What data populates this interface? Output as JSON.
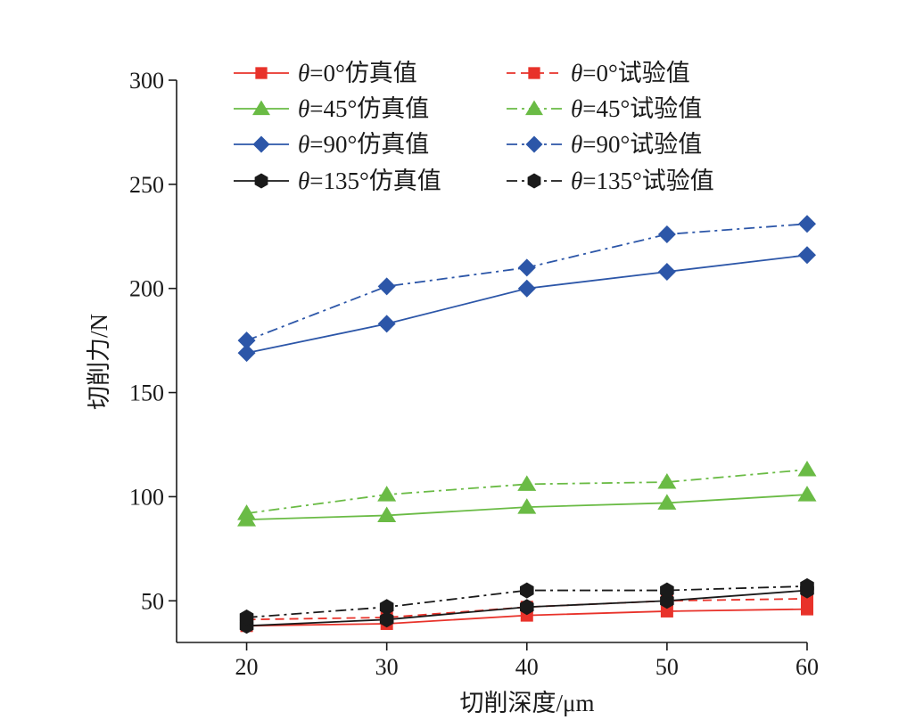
{
  "chart_data": {
    "type": "line",
    "title": "",
    "xlabel": "切削深度/μm",
    "ylabel": "切削力/N",
    "x": [
      20,
      30,
      40,
      50,
      60
    ],
    "xlim": [
      15,
      60
    ],
    "ylim": [
      30,
      300
    ],
    "xticks": [
      20,
      30,
      40,
      50,
      60
    ],
    "yticks": [
      50,
      100,
      150,
      200,
      250,
      300
    ],
    "grid": false,
    "legend_position": "top",
    "series": [
      {
        "name": "θ=0°仿真值",
        "theta": "θ",
        "rest": "=0°仿真值",
        "values": [
          38,
          39,
          43,
          45,
          46
        ],
        "color": "#e8322a",
        "marker": "square",
        "dash": "solid"
      },
      {
        "name": "θ=0°试验值",
        "theta": "θ",
        "rest": "=0°试验值",
        "values": [
          41,
          42,
          47,
          50,
          51
        ],
        "color": "#e8322a",
        "marker": "square",
        "dash": "dashed"
      },
      {
        "name": "θ=45°仿真值",
        "theta": "θ",
        "rest": "=45°仿真值",
        "values": [
          89,
          91,
          95,
          97,
          101
        ],
        "color": "#6abb45",
        "marker": "triangle",
        "dash": "solid"
      },
      {
        "name": "θ=45°试验值",
        "theta": "θ",
        "rest": "=45°试验值",
        "values": [
          92,
          101,
          106,
          107,
          113
        ],
        "color": "#6abb45",
        "marker": "triangle",
        "dash": "dashdot"
      },
      {
        "name": "θ=90°仿真值",
        "theta": "θ",
        "rest": "=90°仿真值",
        "values": [
          169,
          183,
          200,
          208,
          216
        ],
        "color": "#2c56a8",
        "marker": "diamond",
        "dash": "solid"
      },
      {
        "name": "θ=90°试验值",
        "theta": "θ",
        "rest": "=90°试验值",
        "values": [
          175,
          201,
          210,
          226,
          231
        ],
        "color": "#2c56a8",
        "marker": "diamond",
        "dash": "dashdot"
      },
      {
        "name": "θ=135°仿真值",
        "theta": "θ",
        "rest": "=135°仿真值",
        "values": [
          38,
          41,
          47,
          50,
          55
        ],
        "color": "#1a1a1a",
        "marker": "hexagon",
        "dash": "solid"
      },
      {
        "name": "θ=135°试验值",
        "theta": "θ",
        "rest": "=135°试验值",
        "values": [
          42,
          47,
          55,
          55,
          57
        ],
        "color": "#1a1a1a",
        "marker": "hexagon",
        "dash": "dashdot"
      }
    ]
  }
}
